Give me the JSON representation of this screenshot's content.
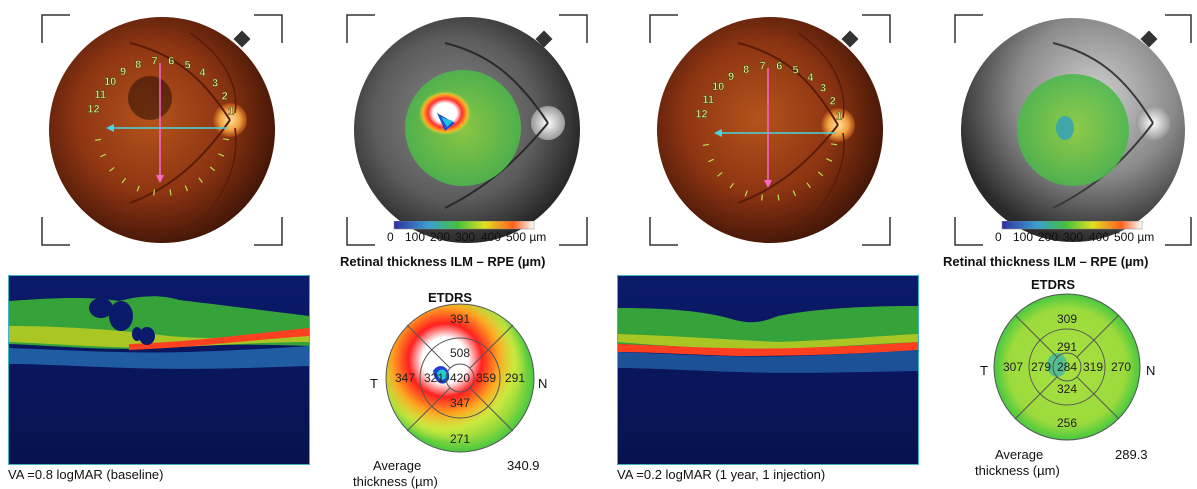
{
  "panels": [
    {
      "id": "baseline",
      "clock_labels": [
        "1",
        "2",
        "3",
        "4",
        "5",
        "6",
        "7",
        "8",
        "9",
        "10",
        "11",
        "12"
      ],
      "thickness_caption": "Retinal thickness ILM – RPE (µm)",
      "scale": {
        "ticks": [
          "0",
          "100",
          "200",
          "300",
          "400",
          "500 µm"
        ]
      },
      "oct_caption": "VA =0.8 logMAR (baseline)",
      "etdrs": {
        "title": "ETDRS",
        "superior_outer": "391",
        "superior_inner": "508",
        "temporal_outer": "347",
        "temporal_inner": "321",
        "center": "420",
        "nasal_inner": "359",
        "nasal_outer": "291",
        "inferior_inner": "347",
        "inferior_outer": "271",
        "side_t": "T",
        "side_n": "N",
        "average_label_1": "Average",
        "average_label_2": "thickness (µm)",
        "average_value": "340.9"
      }
    },
    {
      "id": "followup",
      "clock_labels": [
        "1",
        "2",
        "3",
        "4",
        "5",
        "6",
        "7",
        "8",
        "9",
        "10",
        "11",
        "12"
      ],
      "thickness_caption": "Retinal thickness ILM – RPE (µm)",
      "scale": {
        "ticks": [
          "0",
          "100",
          "200",
          "300",
          "400",
          "500 µm"
        ]
      },
      "oct_caption": "VA =0.2 logMAR (1 year, 1 injection)",
      "etdrs": {
        "title": "ETDRS",
        "superior_outer": "309",
        "superior_inner": "291",
        "temporal_outer": "307",
        "temporal_inner": "279",
        "center": "284",
        "nasal_inner": "319",
        "nasal_outer": "270",
        "inferior_inner": "324",
        "inferior_outer": "256",
        "side_t": "T",
        "side_n": "N",
        "average_label_1": "Average",
        "average_label_2": "thickness (µm)",
        "average_value": "289.3"
      }
    }
  ],
  "colors": {
    "fundus_red": "#9a3b12",
    "cross_h": "#4ad6e0",
    "cross_v": "#ff66cc",
    "oct_border": "#3fb4c4"
  }
}
